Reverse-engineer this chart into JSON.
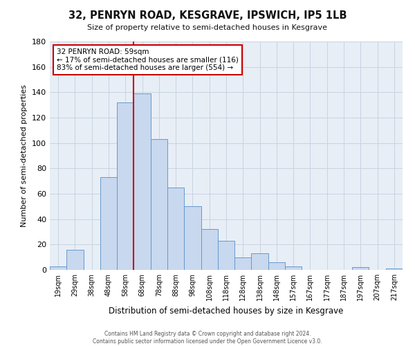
{
  "title": "32, PENRYN ROAD, KESGRAVE, IPSWICH, IP5 1LB",
  "subtitle": "Size of property relative to semi-detached houses in Kesgrave",
  "xlabel": "Distribution of semi-detached houses by size in Kesgrave",
  "ylabel": "Number of semi-detached properties",
  "bar_color": "#c8d8ee",
  "bar_edge_color": "#6699cc",
  "categories": [
    "19sqm",
    "29sqm",
    "38sqm",
    "48sqm",
    "58sqm",
    "68sqm",
    "78sqm",
    "88sqm",
    "98sqm",
    "108sqm",
    "118sqm",
    "128sqm",
    "138sqm",
    "148sqm",
    "157sqm",
    "167sqm",
    "177sqm",
    "187sqm",
    "197sqm",
    "207sqm",
    "217sqm"
  ],
  "values": [
    3,
    16,
    0,
    73,
    132,
    139,
    103,
    65,
    50,
    32,
    23,
    10,
    13,
    6,
    3,
    0,
    0,
    0,
    2,
    0,
    1
  ],
  "ylim": [
    0,
    180
  ],
  "yticks": [
    0,
    20,
    40,
    60,
    80,
    100,
    120,
    140,
    160,
    180
  ],
  "marker_bin_index": 4,
  "marker_label": "32 PENRYN ROAD: 59sqm",
  "marker_color": "#cc0000",
  "annotation_line1": "32 PENRYN ROAD: 59sqm",
  "annotation_line2": "← 17% of semi-detached houses are smaller (116)",
  "annotation_line3": "83% of semi-detached houses are larger (554) →",
  "footer1": "Contains HM Land Registry data © Crown copyright and database right 2024.",
  "footer2": "Contains public sector information licensed under the Open Government Licence v3.0.",
  "background_color": "#ffffff",
  "plot_bg_color": "#e8eef6",
  "grid_color": "#c8d4e0"
}
